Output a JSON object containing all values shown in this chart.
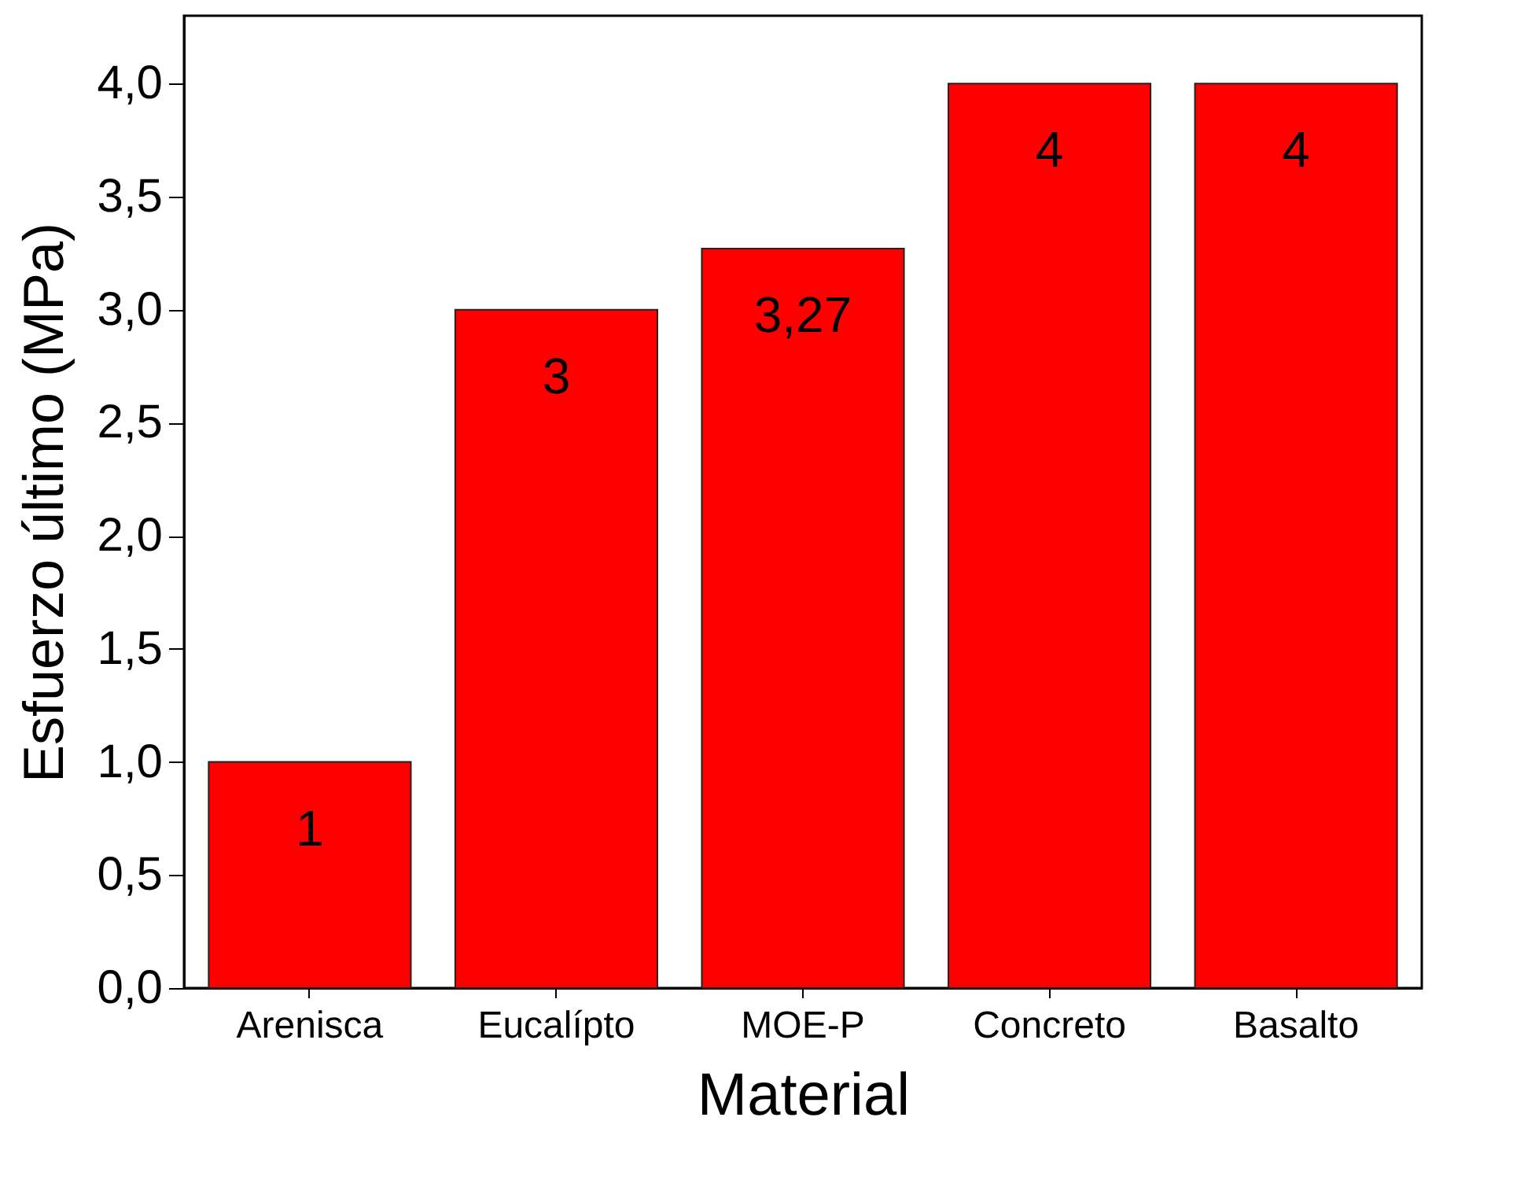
{
  "chart_data": {
    "type": "bar",
    "xlabel": "Material",
    "ylabel": "Esfuerzo último (MPa)",
    "categories": [
      "Arenisca",
      "Eucalípto",
      "MOE-P",
      "Concreto",
      "Basalto"
    ],
    "values": [
      1,
      3,
      3.27,
      4,
      4
    ],
    "value_labels": [
      "1",
      "3",
      "3,27",
      "4",
      "4"
    ],
    "color": "#ff0000",
    "ylim": [
      0,
      4.3
    ],
    "yticks": [
      {
        "value": 0,
        "label": "0,0"
      },
      {
        "value": 0.5,
        "label": "0,5"
      },
      {
        "value": 1,
        "label": "1,0"
      },
      {
        "value": 1.5,
        "label": "1,5"
      },
      {
        "value": 2,
        "label": "2,0"
      },
      {
        "value": 2.5,
        "label": "2,5"
      },
      {
        "value": 3,
        "label": "3,0"
      },
      {
        "value": 3.5,
        "label": "3,5"
      },
      {
        "value": 4,
        "label": "4,0"
      }
    ],
    "grid": false
  }
}
